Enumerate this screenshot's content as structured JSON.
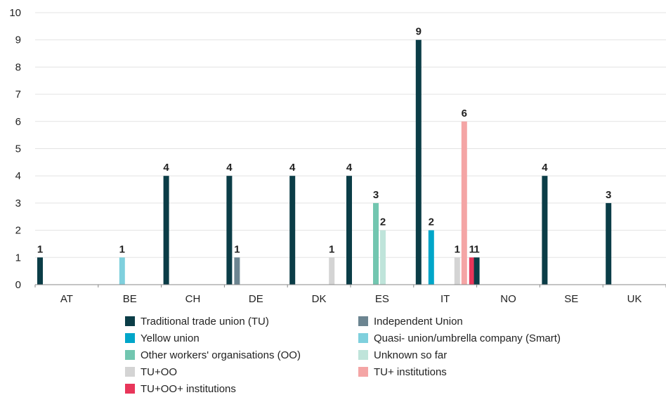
{
  "chart_data": {
    "type": "bar",
    "categories": [
      "AT",
      "BE",
      "CH",
      "DE",
      "DK",
      "ES",
      "IT",
      "NO",
      "SE",
      "UK"
    ],
    "ylim": [
      0,
      10
    ],
    "yticks": [
      0,
      1,
      2,
      3,
      4,
      5,
      6,
      7,
      8,
      9,
      10
    ],
    "grid": true,
    "legend_placement": "bottom",
    "series": [
      {
        "name": "Traditional trade union (TU)",
        "color": "#0b3d47",
        "values": [
          1,
          0,
          4,
          4,
          4,
          4,
          9,
          1,
          4,
          3
        ]
      },
      {
        "name": "Independent Union",
        "color": "#6c8591",
        "values": [
          0,
          0,
          0,
          1,
          0,
          0,
          0,
          0,
          0,
          0
        ]
      },
      {
        "name": "Yellow union",
        "color": "#00a6c9",
        "values": [
          0,
          0,
          0,
          0,
          0,
          0,
          2,
          0,
          0,
          0
        ]
      },
      {
        "name": "Quasi- union/umbrella company (Smart)",
        "color": "#7fd0dd",
        "values": [
          0,
          1,
          0,
          0,
          0,
          0,
          0,
          0,
          0,
          0
        ]
      },
      {
        "name": "Other workers' organisations (OO)",
        "color": "#72c6b0",
        "values": [
          0,
          0,
          0,
          0,
          0,
          3,
          0,
          0,
          0,
          0
        ]
      },
      {
        "name": "Unknown so far",
        "color": "#bfe4da",
        "values": [
          0,
          0,
          0,
          0,
          0,
          2,
          0,
          0,
          0,
          0
        ]
      },
      {
        "name": "TU+OO",
        "color": "#d4d4d4",
        "values": [
          0,
          0,
          0,
          0,
          1,
          0,
          1,
          0,
          0,
          0
        ]
      },
      {
        "name": "TU+ institutions",
        "color": "#f4a5a5",
        "values": [
          0,
          0,
          0,
          0,
          0,
          0,
          6,
          0,
          0,
          0
        ]
      },
      {
        "name": "TU+OO+ institutions",
        "color": "#e8365a",
        "values": [
          0,
          0,
          0,
          0,
          0,
          0,
          1,
          0,
          0,
          0
        ]
      }
    ]
  }
}
